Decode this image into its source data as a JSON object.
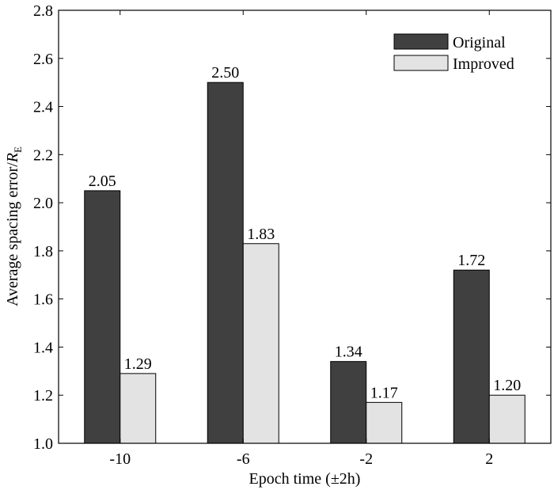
{
  "chart_data": {
    "type": "bar",
    "categories": [
      "-10",
      "-6",
      "-2",
      "2"
    ],
    "series": [
      {
        "name": "Original",
        "values": [
          2.05,
          2.5,
          1.34,
          1.72
        ],
        "labels": [
          "2.05",
          "2.50",
          "1.34",
          "1.72"
        ],
        "color": "#404040"
      },
      {
        "name": "Improved",
        "values": [
          1.29,
          1.83,
          1.17,
          1.2
        ],
        "labels": [
          "1.29",
          "1.83",
          "1.17",
          "1.20"
        ],
        "color": "#e3e3e3"
      }
    ],
    "xlabel": "Epoch time (±2h)",
    "ylabel": {
      "prefix": "Average spacing error/",
      "symbol": "R",
      "subscript": "E"
    },
    "ylim": [
      1.0,
      2.8
    ],
    "yticks": [
      "1.0",
      "1.2",
      "1.4",
      "1.6",
      "1.8",
      "2.0",
      "2.2",
      "2.4",
      "2.6",
      "2.8"
    ],
    "grid": false,
    "legend_position": "top-right"
  }
}
